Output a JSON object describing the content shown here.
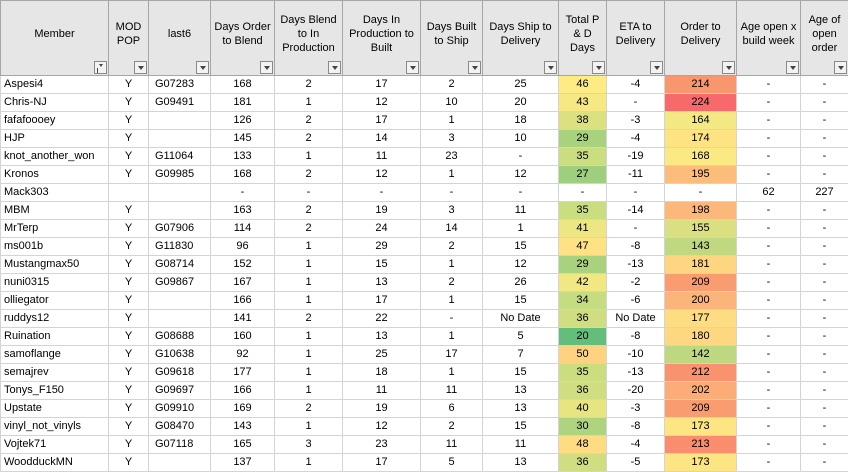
{
  "headers": [
    {
      "label": "Member",
      "sorted": true
    },
    {
      "label": "MOD POP"
    },
    {
      "label": "last6"
    },
    {
      "label": "Days Order to Blend"
    },
    {
      "label": "Days Blend to In Production"
    },
    {
      "label": "Days In Production to Built"
    },
    {
      "label": "Days Built to Ship"
    },
    {
      "label": "Days Ship to Delivery"
    },
    {
      "label": "Total P & D Days"
    },
    {
      "label": "ETA to Delivery"
    },
    {
      "label": "Order to Delivery"
    },
    {
      "label": "Age open x build week"
    },
    {
      "label": "Age of open order"
    }
  ],
  "rows": [
    {
      "member": "Aspesi4",
      "pop": "Y",
      "last6": "G07283",
      "otb": "168",
      "btp": "2",
      "ptb": "17",
      "bts": "2",
      "std": "25",
      "total": "46",
      "eta": "-4",
      "otd": "214",
      "age_build": "-",
      "age_open": "-",
      "total_color": "#ffeb84",
      "otd_color": "#f8976d"
    },
    {
      "member": "Chris-NJ",
      "pop": "Y",
      "last6": "G09491",
      "otb": "181",
      "btp": "1",
      "ptb": "12",
      "bts": "10",
      "std": "20",
      "total": "43",
      "eta": "-",
      "otd": "224",
      "age_build": "-",
      "age_open": "-",
      "total_color": "#f6e883",
      "otd_color": "#f8696b"
    },
    {
      "member": "fafafoooey",
      "pop": "Y",
      "last6": "",
      "otb": "126",
      "btp": "2",
      "ptb": "17",
      "bts": "1",
      "std": "18",
      "total": "38",
      "eta": "-3",
      "otd": "164",
      "age_build": "-",
      "age_open": "-",
      "total_color": "#dbe081",
      "otd_color": "#f4e884"
    },
    {
      "member": "HJP",
      "pop": "Y",
      "last6": "",
      "otb": "145",
      "btp": "2",
      "ptb": "14",
      "bts": "3",
      "std": "10",
      "total": "29",
      "eta": "-4",
      "otd": "174",
      "age_build": "-",
      "age_open": "-",
      "total_color": "#a9d27f",
      "otd_color": "#fee382"
    },
    {
      "member": "knot_another_won",
      "pop": "Y",
      "last6": "G11064",
      "otb": "133",
      "btp": "1",
      "ptb": "11",
      "bts": "23",
      "std": "-",
      "total": "35",
      "eta": "-19",
      "otd": "168",
      "age_build": "-",
      "age_open": "-",
      "total_color": "#cade80",
      "otd_color": "#fbea84"
    },
    {
      "member": "Kronos",
      "pop": "Y",
      "last6": "G09985",
      "otb": "168",
      "btp": "2",
      "ptb": "12",
      "bts": "1",
      "std": "12",
      "total": "27",
      "eta": "-11",
      "otd": "195",
      "age_build": "-",
      "age_open": "-",
      "total_color": "#9ecf7f",
      "otd_color": "#fcbd7b"
    },
    {
      "member": "Mack303",
      "pop": "",
      "last6": "",
      "otb": "-",
      "btp": "-",
      "ptb": "-",
      "bts": "-",
      "std": "-",
      "total": "-",
      "eta": "-",
      "otd": "-",
      "age_build": "62",
      "age_open": "227",
      "total_color": "#ffffff",
      "otd_color": "#ffffff"
    },
    {
      "member": "MBM",
      "pop": "Y",
      "last6": "",
      "otb": "163",
      "btp": "2",
      "ptb": "19",
      "bts": "3",
      "std": "11",
      "total": "35",
      "eta": "-14",
      "otd": "198",
      "age_build": "-",
      "age_open": "-",
      "total_color": "#cade80",
      "otd_color": "#fcb77a"
    },
    {
      "member": "MrTerp",
      "pop": "Y",
      "last6": "G07906",
      "otb": "114",
      "btp": "2",
      "ptb": "24",
      "bts": "14",
      "std": "1",
      "total": "41",
      "eta": "-",
      "otd": "155",
      "age_build": "-",
      "age_open": "-",
      "total_color": "#ece683",
      "otd_color": "#dae081"
    },
    {
      "member": "ms001b",
      "pop": "Y",
      "last6": "G11830",
      "otb": "96",
      "btp": "1",
      "ptb": "29",
      "bts": "2",
      "std": "15",
      "total": "47",
      "eta": "-8",
      "otd": "143",
      "age_build": "-",
      "age_open": "-",
      "total_color": "#ffe283",
      "otd_color": "#c0d980"
    },
    {
      "member": "Mustangmax50",
      "pop": "Y",
      "last6": "G08714",
      "otb": "152",
      "btp": "1",
      "ptb": "15",
      "bts": "1",
      "std": "12",
      "total": "29",
      "eta": "-13",
      "otd": "181",
      "age_build": "-",
      "age_open": "-",
      "total_color": "#a9d27f",
      "otd_color": "#fed580"
    },
    {
      "member": "nuni0315",
      "pop": "Y",
      "last6": "G09867",
      "otb": "167",
      "btp": "1",
      "ptb": "13",
      "bts": "2",
      "std": "26",
      "total": "42",
      "eta": "-2",
      "otd": "209",
      "age_build": "-",
      "age_open": "-",
      "total_color": "#f1e783",
      "otd_color": "#f99d71"
    },
    {
      "member": "olliegator",
      "pop": "Y",
      "last6": "",
      "otb": "166",
      "btp": "1",
      "ptb": "17",
      "bts": "1",
      "std": "15",
      "total": "34",
      "eta": "-6",
      "otd": "200",
      "age_build": "-",
      "age_open": "-",
      "total_color": "#c5dc80",
      "otd_color": "#fbb479"
    },
    {
      "member": "ruddys12",
      "pop": "Y",
      "last6": "",
      "otb": "141",
      "btp": "2",
      "ptb": "22",
      "bts": "-",
      "std": "No Date",
      "total": "36",
      "eta": "No Date",
      "otd": "177",
      "age_build": "-",
      "age_open": "-",
      "total_color": "#d0de81",
      "otd_color": "#fedd82"
    },
    {
      "member": "Ruination",
      "pop": "Y",
      "last6": "G08688",
      "otb": "160",
      "btp": "1",
      "ptb": "13",
      "bts": "1",
      "std": "5",
      "total": "20",
      "eta": "-8",
      "otd": "180",
      "age_build": "-",
      "age_open": "-",
      "total_color": "#63be7b",
      "otd_color": "#fed781"
    },
    {
      "member": "samoflange",
      "pop": "Y",
      "last6": "G10638",
      "otb": "92",
      "btp": "1",
      "ptb": "25",
      "bts": "17",
      "std": "7",
      "total": "50",
      "eta": "-10",
      "otd": "142",
      "age_build": "-",
      "age_open": "-",
      "total_color": "#fed280",
      "otd_color": "#bdd881"
    },
    {
      "member": "semajrev",
      "pop": "Y",
      "last6": "G09618",
      "otb": "177",
      "btp": "1",
      "ptb": "18",
      "bts": "1",
      "std": "15",
      "total": "35",
      "eta": "-13",
      "otd": "212",
      "age_build": "-",
      "age_open": "-",
      "total_color": "#cade80",
      "otd_color": "#f9926f"
    },
    {
      "member": "Tonys_F150",
      "pop": "Y",
      "last6": "G09697",
      "otb": "166",
      "btp": "1",
      "ptb": "11",
      "bts": "11",
      "std": "13",
      "total": "36",
      "eta": "-20",
      "otd": "202",
      "age_build": "-",
      "age_open": "-",
      "total_color": "#d0de81",
      "otd_color": "#fbac77"
    },
    {
      "member": "Upstate",
      "pop": "Y",
      "last6": "G09910",
      "otb": "169",
      "btp": "2",
      "ptb": "19",
      "bts": "6",
      "std": "13",
      "total": "40",
      "eta": "-3",
      "otd": "209",
      "age_build": "-",
      "age_open": "-",
      "total_color": "#e6e582",
      "otd_color": "#f99d71"
    },
    {
      "member": "vinyl_not_vinyls",
      "pop": "Y",
      "last6": "G08470",
      "otb": "143",
      "btp": "1",
      "ptb": "12",
      "bts": "2",
      "std": "15",
      "total": "30",
      "eta": "-8",
      "otd": "173",
      "age_build": "-",
      "age_open": "-",
      "total_color": "#afd47f",
      "otd_color": "#fee583"
    },
    {
      "member": "Vojtek71",
      "pop": "Y",
      "last6": "G07118",
      "otb": "165",
      "btp": "3",
      "ptb": "23",
      "bts": "11",
      "std": "11",
      "total": "48",
      "eta": "-4",
      "otd": "213",
      "age_build": "-",
      "age_open": "-",
      "total_color": "#ffdb82",
      "otd_color": "#f98d6e"
    },
    {
      "member": "WoodduckMN",
      "pop": "Y",
      "last6": "",
      "otb": "137",
      "btp": "1",
      "ptb": "17",
      "bts": "5",
      "std": "13",
      "total": "36",
      "eta": "-5",
      "otd": "173",
      "age_build": "-",
      "age_open": "-",
      "total_color": "#d0de81",
      "otd_color": "#fee583"
    }
  ]
}
